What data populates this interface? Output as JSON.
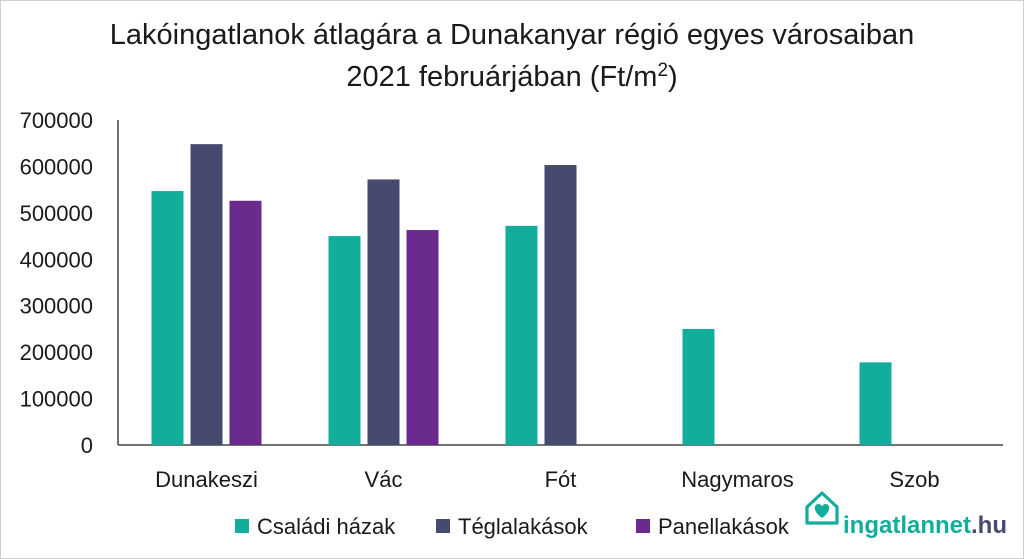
{
  "chart_data": {
    "type": "bar",
    "title_line1": "Lakóingatlanok átlagára a Dunakanyar régió egyes városaiban",
    "title_line2_prefix": "2021 februárjában (Ft/m",
    "title_line2_sup": "2",
    "title_line2_suffix": ")",
    "categories": [
      "Dunakeszi",
      "Vác",
      "Fót",
      "Nagymaros",
      "Szob"
    ],
    "series": [
      {
        "name": "Családi házak",
        "color": "#12AE9B",
        "values": [
          547000,
          450000,
          472000,
          250000,
          178000
        ]
      },
      {
        "name": "Téglalakások",
        "color": "#464A6E",
        "values": [
          648000,
          572000,
          603000,
          null,
          null
        ]
      },
      {
        "name": "Panellakások",
        "color": "#6A2A8E",
        "values": [
          526000,
          463000,
          null,
          null,
          null
        ]
      }
    ],
    "ylim": [
      0,
      700000
    ],
    "yticks": [
      "0",
      "100000",
      "200000",
      "300000",
      "400000",
      "500000",
      "600000",
      "700000"
    ],
    "grid": false,
    "legend_position": "bottom"
  },
  "logo": {
    "brand": "ingatlannet",
    "suffix": ".hu",
    "brand_color": "#12AE9B",
    "suffix_color": "#464A6E",
    "icon": "house-heart-icon"
  }
}
